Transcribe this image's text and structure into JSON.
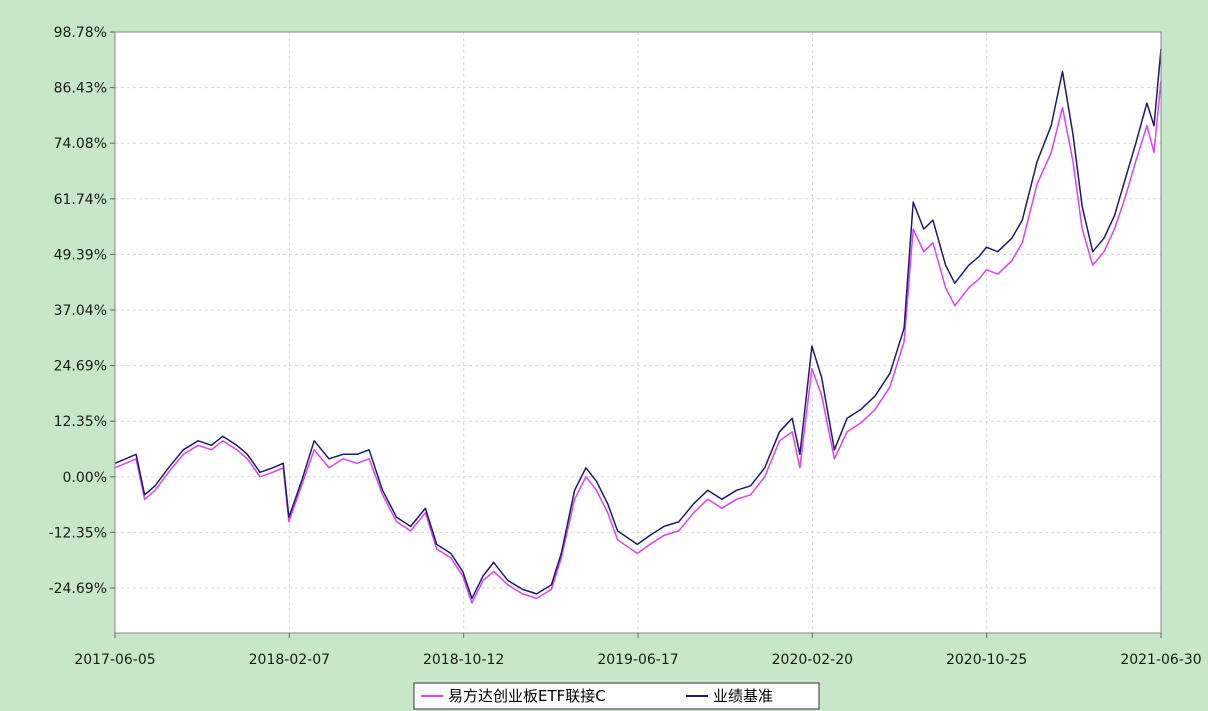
{
  "chart_data": {
    "type": "line",
    "title": "",
    "xlabel": "",
    "ylabel": "",
    "x_ticks": [
      "2017-06-05",
      "2018-02-07",
      "2018-10-12",
      "2019-06-17",
      "2020-02-20",
      "2020-10-25",
      "2021-06-30"
    ],
    "y_ticks": [
      "98.78%",
      "86.43%",
      "74.08%",
      "61.74%",
      "49.39%",
      "37.04%",
      "24.69%",
      "12.35%",
      "0.00%",
      "-12.35%",
      "-24.69%"
    ],
    "ylim": [
      -35,
      98.78
    ],
    "xlim": [
      "2017-06-05",
      "2021-06-30"
    ],
    "grid": true,
    "legend_position": "bottom-center",
    "series": [
      {
        "name": "易方达创业板ETF联接C",
        "color": "#e040fb",
        "points": [
          [
            "2017-06-05",
            2.0
          ],
          [
            "2017-06-20",
            3.0
          ],
          [
            "2017-07-05",
            4.0
          ],
          [
            "2017-07-17",
            -5.0
          ],
          [
            "2017-08-01",
            -3.0
          ],
          [
            "2017-08-20",
            1.0
          ],
          [
            "2017-09-10",
            5.0
          ],
          [
            "2017-10-01",
            7.0
          ],
          [
            "2017-10-20",
            6.0
          ],
          [
            "2017-11-05",
            8.0
          ],
          [
            "2017-11-25",
            6.0
          ],
          [
            "2017-12-10",
            4.0
          ],
          [
            "2017-12-28",
            0.0
          ],
          [
            "2018-01-15",
            1.0
          ],
          [
            "2018-01-30",
            2.0
          ],
          [
            "2018-02-07",
            -10.0
          ],
          [
            "2018-02-25",
            -2.0
          ],
          [
            "2018-03-15",
            6.0
          ],
          [
            "2018-04-05",
            2.0
          ],
          [
            "2018-04-25",
            4.0
          ],
          [
            "2018-05-15",
            3.0
          ],
          [
            "2018-06-01",
            4.0
          ],
          [
            "2018-06-20",
            -4.0
          ],
          [
            "2018-07-10",
            -10.0
          ],
          [
            "2018-07-30",
            -12.0
          ],
          [
            "2018-08-20",
            -8.0
          ],
          [
            "2018-09-05",
            -16.0
          ],
          [
            "2018-09-25",
            -18.0
          ],
          [
            "2018-10-12",
            -22.0
          ],
          [
            "2018-10-25",
            -28.0
          ],
          [
            "2018-11-10",
            -23.0
          ],
          [
            "2018-11-25",
            -21.0
          ],
          [
            "2018-12-15",
            -24.0
          ],
          [
            "2019-01-05",
            -26.0
          ],
          [
            "2019-01-25",
            -27.0
          ],
          [
            "2019-02-15",
            -25.0
          ],
          [
            "2019-03-01",
            -18.0
          ],
          [
            "2019-03-20",
            -5.0
          ],
          [
            "2019-04-05",
            0.0
          ],
          [
            "2019-04-20",
            -3.0
          ],
          [
            "2019-05-06",
            -8.0
          ],
          [
            "2019-05-20",
            -14.0
          ],
          [
            "2019-06-17",
            -17.0
          ],
          [
            "2019-07-05",
            -15.0
          ],
          [
            "2019-07-25",
            -13.0
          ],
          [
            "2019-08-15",
            -12.0
          ],
          [
            "2019-09-05",
            -8.0
          ],
          [
            "2019-09-25",
            -5.0
          ],
          [
            "2019-10-15",
            -7.0
          ],
          [
            "2019-11-05",
            -5.0
          ],
          [
            "2019-11-25",
            -4.0
          ],
          [
            "2019-12-15",
            0.0
          ],
          [
            "2020-01-05",
            8.0
          ],
          [
            "2020-01-23",
            10.0
          ],
          [
            "2020-02-03",
            2.0
          ],
          [
            "2020-02-20",
            24.0
          ],
          [
            "2020-03-05",
            18.0
          ],
          [
            "2020-03-23",
            4.0
          ],
          [
            "2020-04-10",
            10.0
          ],
          [
            "2020-04-30",
            12.0
          ],
          [
            "2020-05-20",
            15.0
          ],
          [
            "2020-06-10",
            20.0
          ],
          [
            "2020-06-30",
            30.0
          ],
          [
            "2020-07-13",
            55.0
          ],
          [
            "2020-07-28",
            50.0
          ],
          [
            "2020-08-10",
            52.0
          ],
          [
            "2020-08-28",
            42.0
          ],
          [
            "2020-09-10",
            38.0
          ],
          [
            "2020-09-30",
            42.0
          ],
          [
            "2020-10-15",
            44.0
          ],
          [
            "2020-10-25",
            46.0
          ],
          [
            "2020-11-10",
            45.0
          ],
          [
            "2020-11-30",
            48.0
          ],
          [
            "2020-12-15",
            52.0
          ],
          [
            "2021-01-05",
            65.0
          ],
          [
            "2021-01-25",
            72.0
          ],
          [
            "2021-02-10",
            82.0
          ],
          [
            "2021-02-25",
            70.0
          ],
          [
            "2021-03-10",
            55.0
          ],
          [
            "2021-03-25",
            47.0
          ],
          [
            "2021-04-10",
            50.0
          ],
          [
            "2021-04-25",
            55.0
          ],
          [
            "2021-05-10",
            62.0
          ],
          [
            "2021-05-25",
            70.0
          ],
          [
            "2021-06-10",
            78.0
          ],
          [
            "2021-06-20",
            72.0
          ],
          [
            "2021-06-30",
            88.0
          ]
        ]
      },
      {
        "name": "业绩基准",
        "color": "#1a1a6e",
        "points": [
          [
            "2017-06-05",
            3.0
          ],
          [
            "2017-06-20",
            4.0
          ],
          [
            "2017-07-05",
            5.0
          ],
          [
            "2017-07-17",
            -4.0
          ],
          [
            "2017-08-01",
            -2.0
          ],
          [
            "2017-08-20",
            2.0
          ],
          [
            "2017-09-10",
            6.0
          ],
          [
            "2017-10-01",
            8.0
          ],
          [
            "2017-10-20",
            7.0
          ],
          [
            "2017-11-05",
            9.0
          ],
          [
            "2017-11-25",
            7.0
          ],
          [
            "2017-12-10",
            5.0
          ],
          [
            "2017-12-28",
            1.0
          ],
          [
            "2018-01-15",
            2.0
          ],
          [
            "2018-01-30",
            3.0
          ],
          [
            "2018-02-07",
            -9.0
          ],
          [
            "2018-02-25",
            -1.0
          ],
          [
            "2018-03-15",
            8.0
          ],
          [
            "2018-04-05",
            4.0
          ],
          [
            "2018-04-25",
            5.0
          ],
          [
            "2018-05-15",
            5.0
          ],
          [
            "2018-06-01",
            6.0
          ],
          [
            "2018-06-20",
            -3.0
          ],
          [
            "2018-07-10",
            -9.0
          ],
          [
            "2018-07-30",
            -11.0
          ],
          [
            "2018-08-20",
            -7.0
          ],
          [
            "2018-09-05",
            -15.0
          ],
          [
            "2018-09-25",
            -17.0
          ],
          [
            "2018-10-12",
            -21.0
          ],
          [
            "2018-10-25",
            -27.0
          ],
          [
            "2018-11-10",
            -22.0
          ],
          [
            "2018-11-25",
            -19.0
          ],
          [
            "2018-12-15",
            -23.0
          ],
          [
            "2019-01-05",
            -25.0
          ],
          [
            "2019-01-25",
            -26.0
          ],
          [
            "2019-02-15",
            -24.0
          ],
          [
            "2019-03-01",
            -17.0
          ],
          [
            "2019-03-20",
            -3.0
          ],
          [
            "2019-04-05",
            2.0
          ],
          [
            "2019-04-20",
            -1.0
          ],
          [
            "2019-05-06",
            -6.0
          ],
          [
            "2019-05-20",
            -12.0
          ],
          [
            "2019-06-17",
            -15.0
          ],
          [
            "2019-07-05",
            -13.0
          ],
          [
            "2019-07-25",
            -11.0
          ],
          [
            "2019-08-15",
            -10.0
          ],
          [
            "2019-09-05",
            -6.0
          ],
          [
            "2019-09-25",
            -3.0
          ],
          [
            "2019-10-15",
            -5.0
          ],
          [
            "2019-11-05",
            -3.0
          ],
          [
            "2019-11-25",
            -2.0
          ],
          [
            "2019-12-15",
            2.0
          ],
          [
            "2020-01-05",
            10.0
          ],
          [
            "2020-01-23",
            13.0
          ],
          [
            "2020-02-03",
            5.0
          ],
          [
            "2020-02-20",
            29.0
          ],
          [
            "2020-03-05",
            22.0
          ],
          [
            "2020-03-23",
            6.0
          ],
          [
            "2020-04-10",
            13.0
          ],
          [
            "2020-04-30",
            15.0
          ],
          [
            "2020-05-20",
            18.0
          ],
          [
            "2020-06-10",
            23.0
          ],
          [
            "2020-06-30",
            33.0
          ],
          [
            "2020-07-13",
            61.0
          ],
          [
            "2020-07-28",
            55.0
          ],
          [
            "2020-08-10",
            57.0
          ],
          [
            "2020-08-28",
            47.0
          ],
          [
            "2020-09-10",
            43.0
          ],
          [
            "2020-09-30",
            47.0
          ],
          [
            "2020-10-15",
            49.0
          ],
          [
            "2020-10-25",
            51.0
          ],
          [
            "2020-11-10",
            50.0
          ],
          [
            "2020-11-30",
            53.0
          ],
          [
            "2020-12-15",
            57.0
          ],
          [
            "2021-01-05",
            70.0
          ],
          [
            "2021-01-25",
            78.0
          ],
          [
            "2021-02-10",
            90.0
          ],
          [
            "2021-02-25",
            76.0
          ],
          [
            "2021-03-10",
            60.0
          ],
          [
            "2021-03-25",
            50.0
          ],
          [
            "2021-04-10",
            53.0
          ],
          [
            "2021-04-25",
            58.0
          ],
          [
            "2021-05-10",
            66.0
          ],
          [
            "2021-05-25",
            74.0
          ],
          [
            "2021-06-10",
            83.0
          ],
          [
            "2021-06-20",
            78.0
          ],
          [
            "2021-06-30",
            95.0
          ]
        ]
      }
    ]
  }
}
